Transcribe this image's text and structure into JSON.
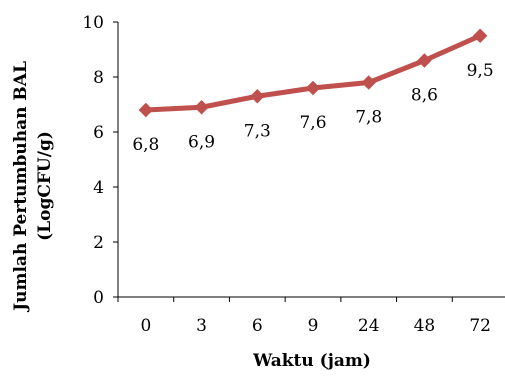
{
  "chart_data": {
    "type": "line",
    "categories": [
      "0",
      "3",
      "6",
      "9",
      "24",
      "48",
      "72"
    ],
    "series": [
      {
        "values": [
          6.8,
          6.9,
          7.3,
          7.6,
          7.8,
          8.6,
          9.5
        ],
        "color": "#C0504D",
        "marker": "diamond"
      }
    ],
    "data_labels": [
      "6,8",
      "6,9",
      "7,3",
      "7,6",
      "7,8",
      "8,6",
      "9,5"
    ],
    "xlabel": "Waktu (jam)",
    "ylabel_line1": "Jumlah Pertumbuhan BAL",
    "ylabel_line2": "(LogCFU/g)",
    "ylim": [
      0,
      10
    ],
    "yticks": [
      "0",
      "2",
      "4",
      "6",
      "8",
      "10"
    ],
    "grid": false,
    "legend": "none"
  }
}
